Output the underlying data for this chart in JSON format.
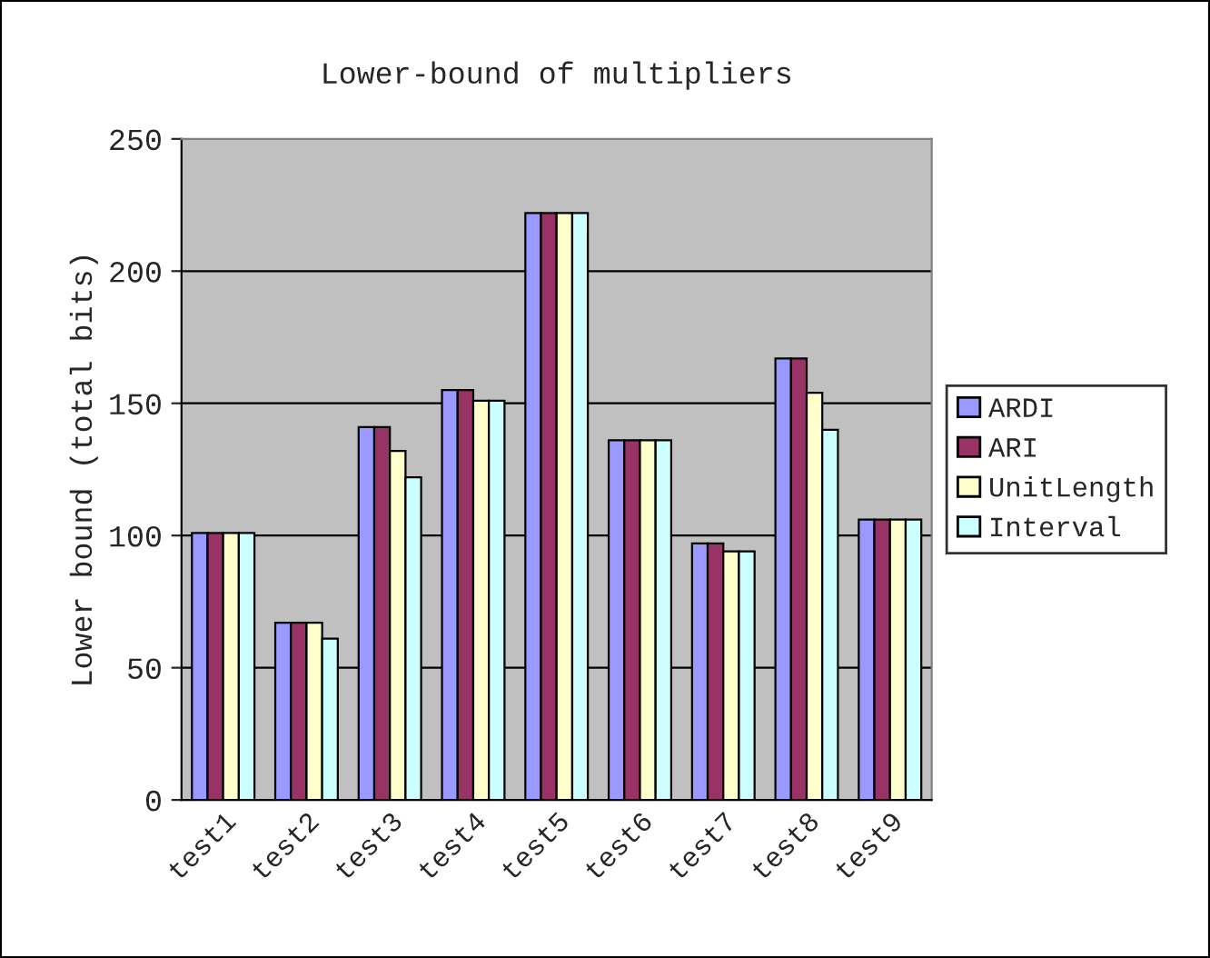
{
  "chart_data": {
    "type": "bar",
    "title": "Lower-bound of multipliers",
    "ylabel": "Lower bound (total bits)",
    "categories": [
      "test1",
      "test2",
      "test3",
      "test4",
      "test5",
      "test6",
      "test7",
      "test8",
      "test9"
    ],
    "series": [
      {
        "name": "ARDI",
        "color": "#9999ff",
        "values": [
          101,
          67,
          141,
          155,
          222,
          136,
          97,
          167,
          106
        ]
      },
      {
        "name": "ARI",
        "color": "#993366",
        "values": [
          101,
          67,
          141,
          155,
          222,
          136,
          97,
          167,
          106
        ]
      },
      {
        "name": "UnitLength",
        "color": "#ffffcc",
        "values": [
          101,
          67,
          132,
          151,
          222,
          136,
          94,
          154,
          106
        ]
      },
      {
        "name": "Interval",
        "color": "#ccffff",
        "values": [
          101,
          61,
          122,
          151,
          222,
          136,
          94,
          140,
          106
        ]
      }
    ],
    "ylim": [
      0,
      250
    ],
    "yticks": [
      0,
      50,
      100,
      150,
      200,
      250
    ],
    "grid": "y",
    "legend": "right"
  }
}
